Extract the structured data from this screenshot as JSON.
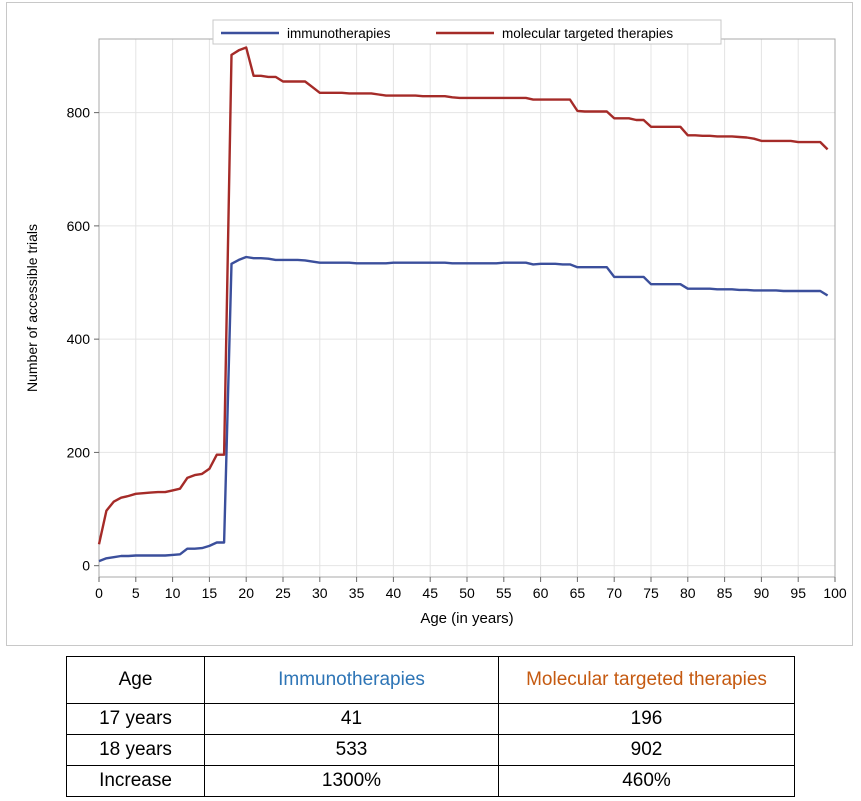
{
  "chart_data": {
    "type": "line",
    "title": "",
    "xlabel": "Age (in years)",
    "ylabel": "Number of accessible trials",
    "xlim": [
      0,
      100
    ],
    "ylim": [
      0,
      900
    ],
    "x_ticks": [
      0,
      5,
      10,
      15,
      20,
      25,
      30,
      35,
      40,
      45,
      50,
      55,
      60,
      65,
      70,
      75,
      80,
      85,
      90,
      95,
      100
    ],
    "y_ticks": [
      0,
      200,
      400,
      600,
      800
    ],
    "grid": true,
    "legend_position": "top",
    "x": [
      0,
      1,
      2,
      3,
      4,
      5,
      6,
      7,
      8,
      9,
      10,
      11,
      12,
      13,
      14,
      15,
      16,
      17,
      18,
      19,
      20,
      21,
      22,
      23,
      24,
      25,
      26,
      27,
      28,
      29,
      30,
      31,
      32,
      33,
      34,
      35,
      36,
      37,
      38,
      39,
      40,
      41,
      42,
      43,
      44,
      45,
      46,
      47,
      48,
      49,
      50,
      51,
      52,
      53,
      54,
      55,
      56,
      57,
      58,
      59,
      60,
      61,
      62,
      63,
      64,
      65,
      66,
      67,
      68,
      69,
      70,
      71,
      72,
      73,
      74,
      75,
      76,
      77,
      78,
      79,
      80,
      81,
      82,
      83,
      84,
      85,
      86,
      87,
      88,
      89,
      90,
      91,
      92,
      93,
      94,
      95,
      96,
      97,
      98,
      99
    ],
    "series": [
      {
        "name": "immunotherapies",
        "color": "#3b4f9c",
        "values": [
          8,
          13,
          15,
          17,
          17,
          18,
          18,
          18,
          18,
          18,
          19,
          20,
          30,
          30,
          31,
          35,
          41,
          41,
          533,
          540,
          545,
          543,
          543,
          542,
          540,
          540,
          540,
          540,
          539,
          537,
          535,
          535,
          535,
          535,
          535,
          534,
          534,
          534,
          534,
          534,
          535,
          535,
          535,
          535,
          535,
          535,
          535,
          535,
          534,
          534,
          534,
          534,
          534,
          534,
          534,
          535,
          535,
          535,
          535,
          532,
          533,
          533,
          533,
          532,
          532,
          527,
          527,
          527,
          527,
          527,
          510,
          510,
          510,
          510,
          510,
          497,
          497,
          497,
          497,
          497,
          489,
          489,
          489,
          489,
          488,
          488,
          488,
          487,
          487,
          486,
          486,
          486,
          486,
          485,
          485,
          485,
          485,
          485,
          485,
          477
        ]
      },
      {
        "name": "molecular targeted therapies",
        "color": "#a52b28",
        "values": [
          38,
          97,
          113,
          120,
          123,
          127,
          128,
          129,
          130,
          130,
          133,
          136,
          155,
          160,
          162,
          171,
          196,
          196,
          902,
          910,
          915,
          865,
          865,
          863,
          863,
          855,
          855,
          855,
          855,
          845,
          835,
          835,
          835,
          835,
          834,
          834,
          834,
          834,
          832,
          830,
          830,
          830,
          830,
          830,
          829,
          829,
          829,
          829,
          827,
          826,
          826,
          826,
          826,
          826,
          826,
          826,
          826,
          826,
          826,
          823,
          823,
          823,
          823,
          823,
          823,
          803,
          802,
          802,
          802,
          802,
          790,
          790,
          790,
          787,
          787,
          775,
          775,
          775,
          775,
          775,
          760,
          760,
          759,
          759,
          758,
          758,
          758,
          757,
          756,
          754,
          750,
          750,
          750,
          750,
          750,
          748,
          748,
          748,
          748,
          735
        ]
      }
    ]
  },
  "table": {
    "headers": [
      "Age",
      "Immunotherapies",
      "Molecular targeted therapies"
    ],
    "header_colors": [
      "#000000",
      "#2e75b6",
      "#c55a11"
    ],
    "rows": [
      [
        "17 years",
        "41",
        "196"
      ],
      [
        "18 years",
        "533",
        "902"
      ],
      [
        "Increase",
        "1300%",
        "460%"
      ]
    ]
  }
}
